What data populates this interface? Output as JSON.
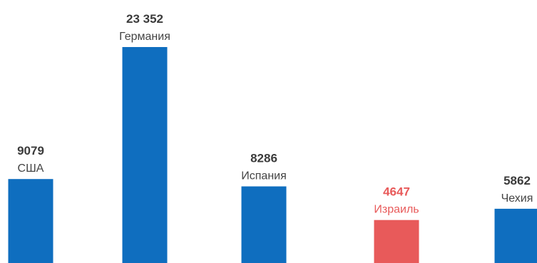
{
  "chart_data": {
    "type": "bar",
    "categories": [
      "США",
      "Германия",
      "Испания",
      "Израиль",
      "Чехия"
    ],
    "values": [
      9079,
      23352,
      8286,
      4647,
      5862
    ],
    "value_labels": [
      "9079",
      "23 352",
      "8286",
      "4647",
      "5862"
    ],
    "highlight_category": "Израиль",
    "title": "",
    "xlabel": "",
    "ylabel": "",
    "grid": false,
    "legend": "none"
  },
  "colors": {
    "bar": "#0f6ebf",
    "highlight": "#e85a5a",
    "value_text": "#3b3b3b",
    "category_text": "#444444",
    "highlight_text": "#e85a5a"
  }
}
